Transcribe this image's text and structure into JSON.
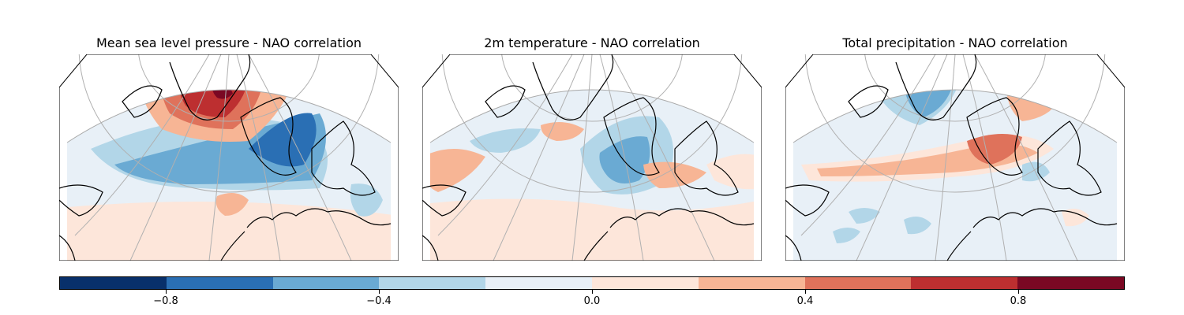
{
  "panels": [
    {
      "title": "Mean sea level pressure - NAO correlation"
    },
    {
      "title": "2m temperature - NAO correlation"
    },
    {
      "title": "Total precipitation - NAO correlation"
    }
  ],
  "colorbar": {
    "colors": [
      "#08306b",
      "#2a6fb4",
      "#6aaad3",
      "#b2d6e8",
      "#e8f0f7",
      "#fde6da",
      "#f7b595",
      "#df725b",
      "#bd2f30",
      "#7a0823"
    ],
    "ticks": [
      {
        "value": -0.8,
        "label": "−0.8"
      },
      {
        "value": -0.4,
        "label": "−0.4"
      },
      {
        "value": 0.0,
        "label": "0.0"
      },
      {
        "value": 0.4,
        "label": "0.4"
      },
      {
        "value": 0.8,
        "label": "0.8"
      }
    ],
    "range": [
      -1.0,
      1.0
    ]
  }
}
